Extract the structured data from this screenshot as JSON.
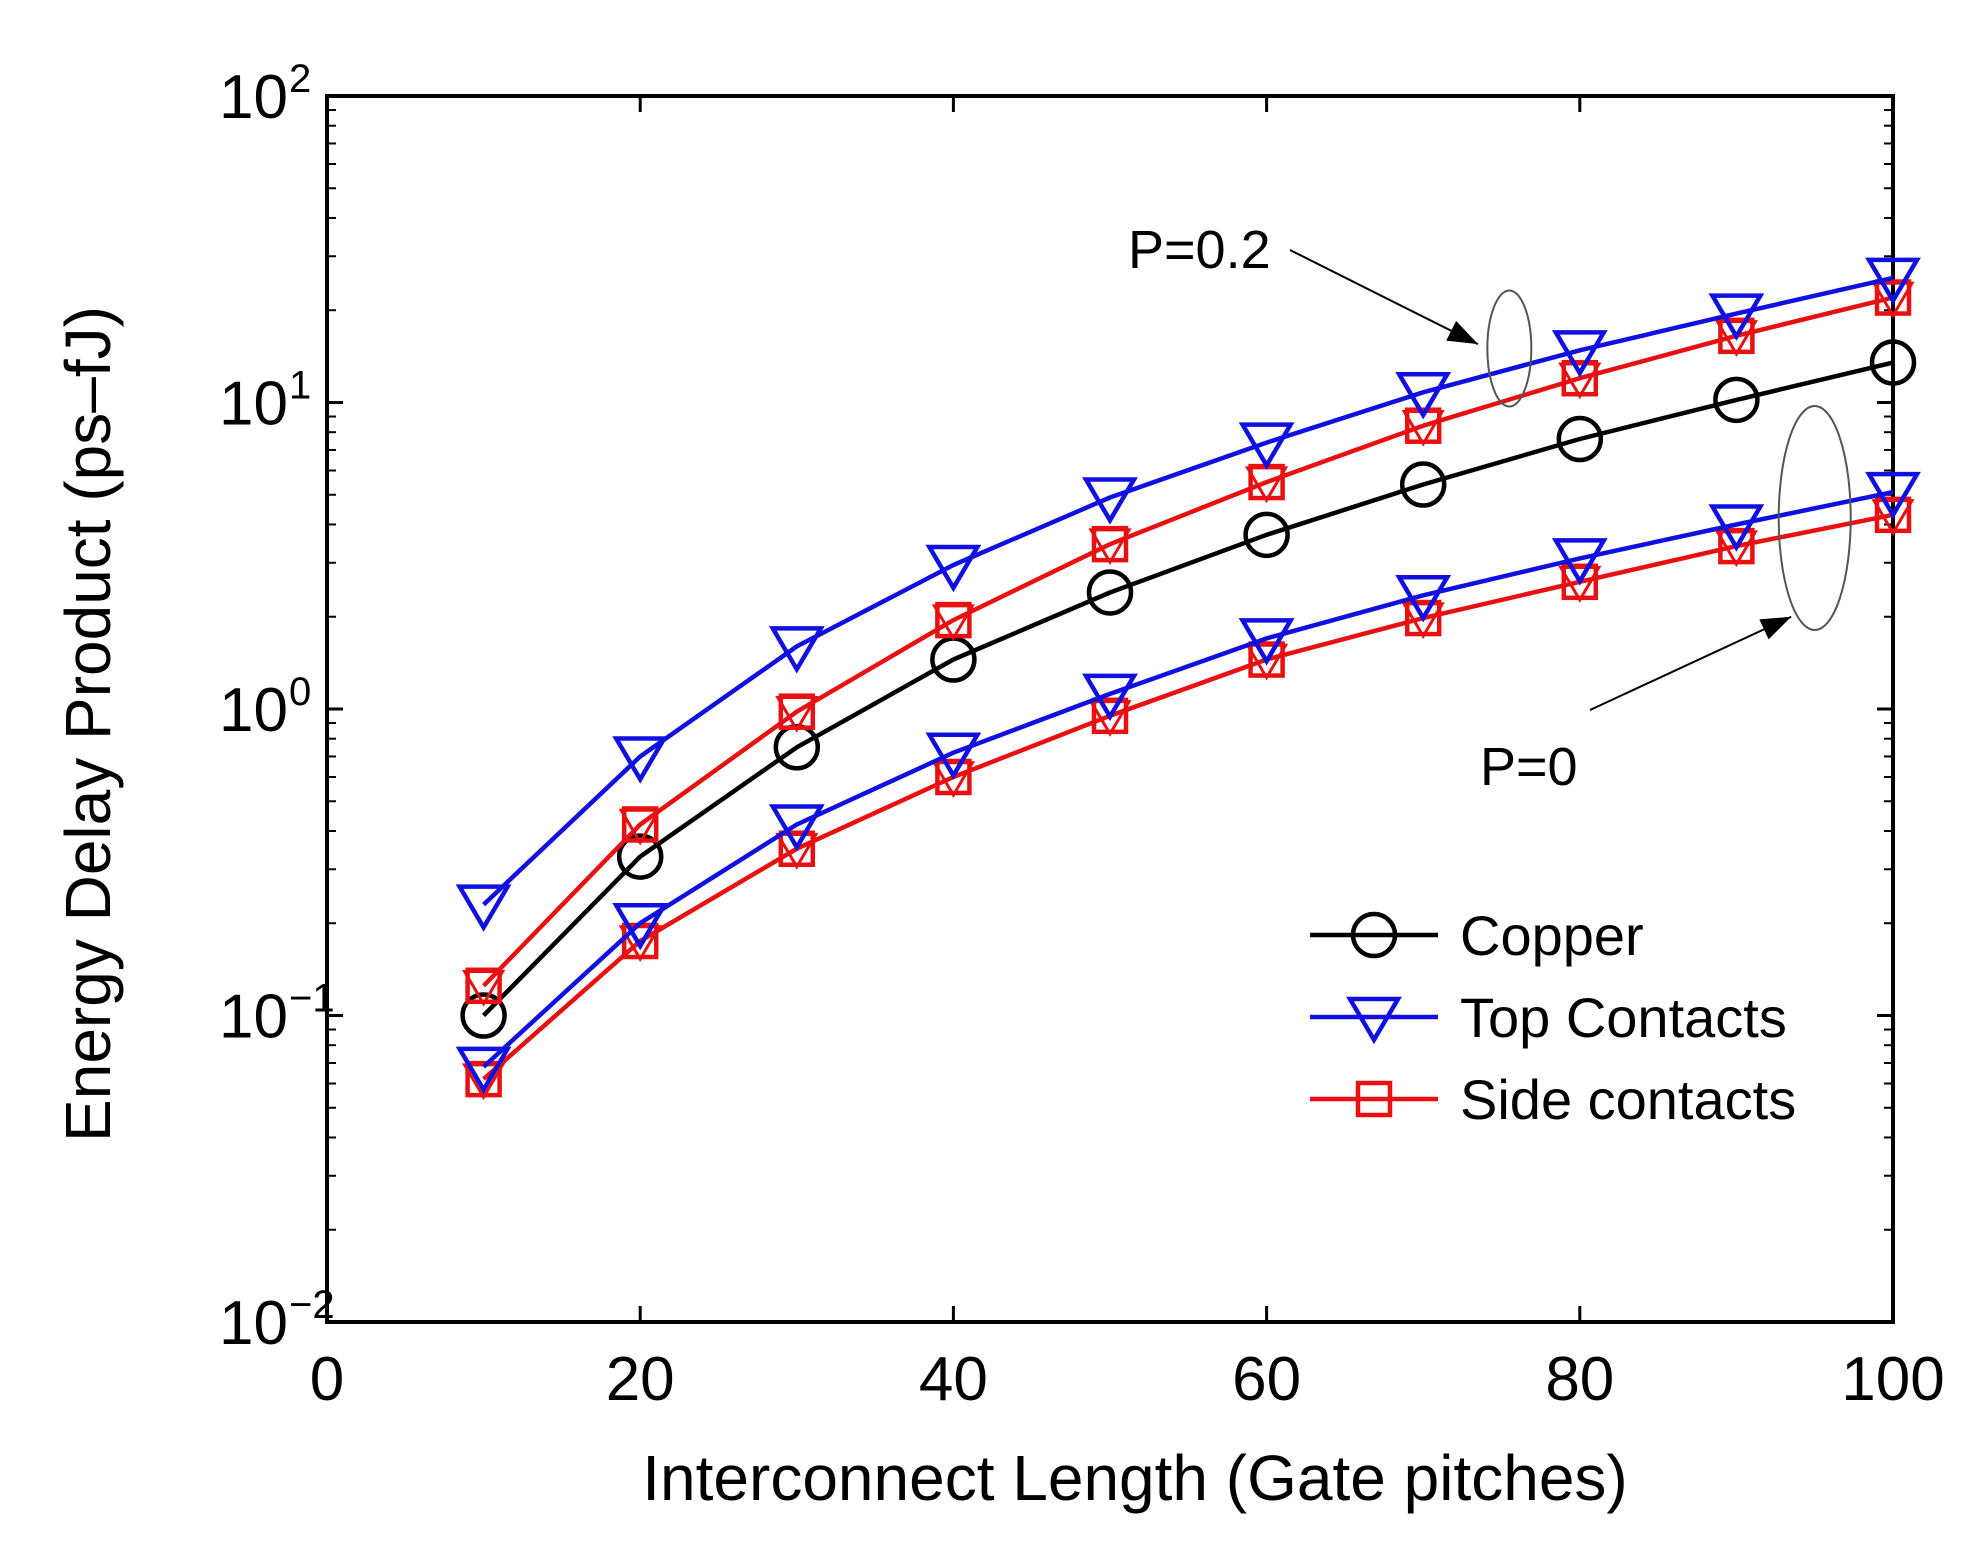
{
  "chart_data": {
    "type": "line",
    "title": "",
    "xlabel": "Interconnect Length (Gate pitches)",
    "ylabel": "Energy Delay Product (ps–fJ)",
    "xlim": [
      0,
      100
    ],
    "ylim": [
      0.01,
      100
    ],
    "yscale": "log",
    "grid": false,
    "x_ticks": [
      {
        "label": "0",
        "value": 0
      },
      {
        "label": "20",
        "value": 20
      },
      {
        "label": "40",
        "value": 40
      },
      {
        "label": "60",
        "value": 60
      },
      {
        "label": "80",
        "value": 80
      },
      {
        "label": "100",
        "value": 100
      }
    ],
    "y_ticks": [
      {
        "base": "10",
        "exp": "−2",
        "value": 0.01
      },
      {
        "base": "10",
        "exp": "−1",
        "value": 0.1
      },
      {
        "base": "10",
        "exp": "0",
        "value": 1
      },
      {
        "base": "10",
        "exp": "1",
        "value": 10
      },
      {
        "base": "10",
        "exp": "2",
        "value": 100
      }
    ],
    "x": [
      10,
      20,
      30,
      40,
      50,
      60,
      70,
      80,
      90,
      100
    ],
    "series": [
      {
        "name": "Copper",
        "color": "#000000",
        "marker": "circle",
        "values": [
          0.1,
          0.33,
          0.75,
          1.45,
          2.4,
          3.7,
          5.4,
          7.6,
          10.2,
          13.5
        ]
      },
      {
        "name": "Top Contacts (P=0.2)",
        "color": "#1010e0",
        "marker": "triangle-down",
        "values": [
          0.23,
          0.7,
          1.6,
          2.95,
          4.9,
          7.4,
          10.8,
          14.8,
          19.5,
          25.5
        ]
      },
      {
        "name": "Side contacts (P=0.2)",
        "color": "#e81010",
        "marker": "square-with-triangle",
        "values": [
          0.125,
          0.42,
          0.98,
          1.95,
          3.45,
          5.5,
          8.4,
          12.0,
          16.5,
          22.0
        ]
      },
      {
        "name": "Top Contacts (P=0)",
        "color": "#1010e0",
        "marker": "triangle-down",
        "values": [
          0.068,
          0.2,
          0.42,
          0.72,
          1.12,
          1.7,
          2.35,
          3.1,
          4.0,
          5.1
        ]
      },
      {
        "name": "Side contacts (P=0)",
        "color": "#e81010",
        "marker": "square-with-triangle",
        "values": [
          0.062,
          0.175,
          0.35,
          0.6,
          0.95,
          1.45,
          1.98,
          2.6,
          3.4,
          4.3
        ]
      }
    ],
    "legend": {
      "position": "bottom-right",
      "entries": [
        {
          "label": "Copper",
          "color": "#000000",
          "marker": "circle"
        },
        {
          "label": "Top Contacts",
          "color": "#1010e0",
          "marker": "triangle-down"
        },
        {
          "label": "Side contacts",
          "color": "#e81010",
          "marker": "square"
        }
      ]
    },
    "annotations": [
      {
        "text": "P=0.2",
        "target": "upper curve group at x≈75"
      },
      {
        "text": "P=0",
        "target": "lower curve group at x≈95"
      }
    ]
  }
}
